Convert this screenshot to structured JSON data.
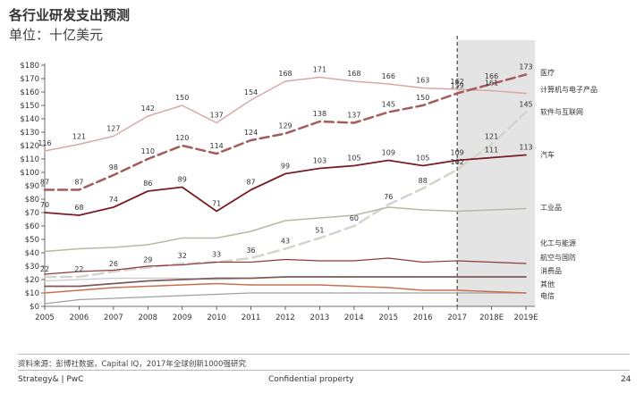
{
  "header": {
    "title": "各行业研发支出预测",
    "subtitle": "单位：十亿美元"
  },
  "footer": {
    "source": "资料来源：彭博社数据，Capital IQ，2017年全球创新1000强研究",
    "left": "Strategy& | PwC",
    "center": "Confidential property",
    "page_number": "24"
  },
  "colors": {
    "medical": "#d8a8a8",
    "computing": "#a35c5c",
    "software": "#8c8c7a",
    "auto": "#7a1c24",
    "industrial": "#b6b8a8",
    "chemical": "#8c3a3a",
    "aerospace": "#c9c9c9",
    "consumer": "#7d5a5a",
    "other": "#a0a0a0",
    "telecom": "#c87050",
    "forecast_shade": "#e4e4e4"
  },
  "chart_data": {
    "type": "line",
    "categories": [
      "2005",
      "2006",
      "2007",
      "2008",
      "2009",
      "2010",
      "2011",
      "2012",
      "2013",
      "2014",
      "2015",
      "2016",
      "2017",
      "2018E",
      "2019E"
    ],
    "ylim": [
      0,
      180
    ],
    "yticks": [
      0,
      10,
      20,
      30,
      40,
      50,
      60,
      70,
      80,
      90,
      100,
      110,
      120,
      130,
      140,
      150,
      160,
      170,
      180
    ],
    "ytick_labels": [
      "$0",
      "$10",
      "$20",
      "$30",
      "$40",
      "$50",
      "$60",
      "$70",
      "$80",
      "$90",
      "$100",
      "$110",
      "$120",
      "$130",
      "$140",
      "$150",
      "$160",
      "$170",
      "$180"
    ],
    "forecast_start": "2017",
    "series": [
      {
        "key": "medical",
        "name": "医疗",
        "style": "solid",
        "width": 1.5,
        "values": [
          116,
          121,
          127,
          142,
          150,
          137,
          154,
          168,
          171,
          168,
          166,
          163,
          162,
          161,
          159
        ],
        "labels": [
          116,
          121,
          127,
          142,
          150,
          137,
          154,
          168,
          171,
          168,
          166,
          163,
          162,
          161,
          null
        ]
      },
      {
        "key": "computing",
        "name": "计算机与电子产品",
        "style": "dashed",
        "width": 2.5,
        "values": [
          87,
          87,
          98,
          110,
          120,
          114,
          124,
          129,
          138,
          137,
          145,
          150,
          159,
          166,
          173
        ],
        "labels": [
          87,
          87,
          98,
          110,
          120,
          114,
          124,
          129,
          138,
          137,
          145,
          150,
          159,
          166,
          173
        ]
      },
      {
        "key": "software",
        "name": "软件与互联网",
        "style": "dashed-light",
        "width": 2.5,
        "values": [
          22,
          22,
          26,
          29,
          32,
          33,
          36,
          43,
          51,
          60,
          76,
          88,
          102,
          121,
          145
        ],
        "labels": [
          22,
          22,
          26,
          29,
          32,
          33,
          36,
          43,
          51,
          60,
          76,
          88,
          102,
          121,
          145
        ]
      },
      {
        "key": "auto",
        "name": "汽车",
        "style": "solid",
        "width": 1.8,
        "values": [
          70,
          68,
          74,
          86,
          89,
          71,
          87,
          99,
          103,
          105,
          109,
          105,
          109,
          111,
          113
        ],
        "labels": [
          70,
          68,
          74,
          86,
          89,
          71,
          87,
          99,
          103,
          105,
          109,
          105,
          109,
          111,
          113
        ]
      },
      {
        "key": "industrial",
        "name": "工业品",
        "style": "solid",
        "width": 1.5,
        "values": [
          41,
          43,
          44,
          46,
          51,
          51,
          56,
          64,
          66,
          68,
          74,
          72,
          71,
          72,
          73
        ],
        "labels": []
      },
      {
        "key": "chemical",
        "name": "化工与能源",
        "style": "solid",
        "width": 1.2,
        "values": [
          24,
          26,
          27,
          30,
          31,
          33,
          33,
          35,
          34,
          34,
          36,
          33,
          34,
          33,
          32
        ],
        "labels": []
      },
      {
        "key": "aerospace",
        "name": "航空与国防",
        "style": "solid",
        "width": 1.2,
        "values": [
          19,
          20,
          21,
          21,
          21,
          20,
          21,
          22,
          22,
          22,
          22,
          22,
          22,
          22,
          22
        ],
        "labels": []
      },
      {
        "key": "consumer",
        "name": "消费品",
        "style": "solid",
        "width": 1.8,
        "values": [
          15,
          15,
          17,
          19,
          20,
          21,
          21,
          22,
          22,
          22,
          22,
          22,
          22,
          22,
          22
        ],
        "labels": []
      },
      {
        "key": "other",
        "name": "其他",
        "style": "solid",
        "width": 1.2,
        "values": [
          2,
          5,
          6,
          7,
          8,
          9,
          10,
          10,
          10,
          10,
          10,
          10,
          10,
          10,
          10
        ],
        "labels": []
      },
      {
        "key": "telecom",
        "name": "电信",
        "style": "solid",
        "width": 1.5,
        "values": [
          10,
          12,
          14,
          15,
          16,
          17,
          16,
          16,
          16,
          15,
          14,
          12,
          12,
          11,
          10
        ],
        "labels": []
      }
    ],
    "legend_placement": "right"
  }
}
